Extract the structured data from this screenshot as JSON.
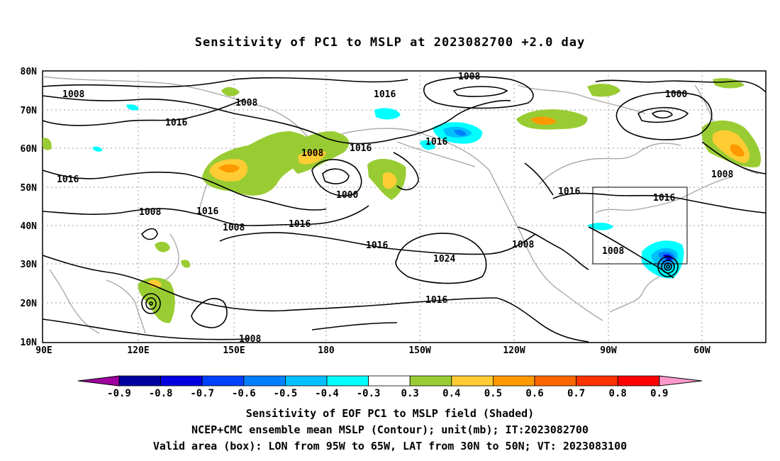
{
  "title": "Sensitivity of PC1 to MSLP at 2023082700 +2.0 day",
  "lat_labels": [
    "80N",
    "70N",
    "60N",
    "50N",
    "40N",
    "30N",
    "20N",
    "10N"
  ],
  "lon_labels": [
    "90E",
    "120E",
    "150E",
    "180",
    "150W",
    "120W",
    "90W",
    "60W"
  ],
  "contour_labels": [
    "1008",
    "1008",
    "1016",
    "1016",
    "1008",
    "1016",
    "1016",
    "1000",
    "1000",
    "1008",
    "1008",
    "1016",
    "1008",
    "1016",
    "1016",
    "1024",
    "1008",
    "1016",
    "1008",
    "1016",
    "1008",
    "1016",
    "1008"
  ],
  "colorbar": {
    "ticks": [
      "-0.9",
      "-0.8",
      "-0.7",
      "-0.6",
      "-0.5",
      "-0.4",
      "-0.3",
      "0.3",
      "0.4",
      "0.5",
      "0.6",
      "0.7",
      "0.8",
      "0.9"
    ],
    "colors": [
      "#a000a0",
      "#0000a0",
      "#0000e0",
      "#0040ff",
      "#0080ff",
      "#00c0ff",
      "#00ffff",
      "#ffffff",
      "#99cc33",
      "#ffcc33",
      "#ff9900",
      "#ff6600",
      "#ff3300",
      "#ff0000",
      "#ff99cc"
    ]
  },
  "footer": {
    "line1": "Sensitivity of EOF PC1 to MSLP field (Shaded)",
    "line2": "NCEP+CMC ensemble mean MSLP (Contour); unit(mb); IT:2023082700",
    "line3": "Valid area (box): LON from 95W to 65W, LAT from 30N to 50N; VT: 2023083100"
  }
}
